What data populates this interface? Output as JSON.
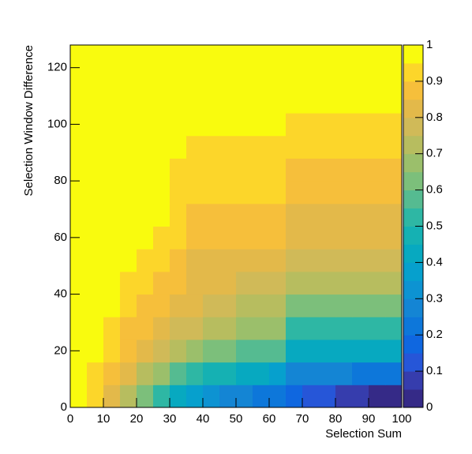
{
  "chart_data": {
    "type": "heatmap",
    "xlabel": "Selection Sum",
    "ylabel": "Selection Window Difference",
    "x_edges": [
      0,
      5,
      10,
      15,
      20,
      25,
      30,
      35,
      40,
      45,
      50,
      55,
      60,
      65,
      70,
      75,
      80,
      85,
      90,
      95,
      100
    ],
    "y_edges": [
      0,
      8,
      16,
      24,
      32,
      40,
      48,
      56,
      64,
      72,
      80,
      88,
      96,
      104,
      112,
      120,
      128
    ],
    "z": [
      [
        1,
        0.95,
        0.85,
        0.75,
        0.65,
        0.55,
        0.45,
        0.4,
        0.35,
        0.3,
        0.3,
        0.25,
        0.25,
        0.2,
        0.15,
        0.15,
        0.1,
        0.1,
        0.05,
        0.05
      ],
      [
        1,
        0.95,
        0.9,
        0.85,
        0.75,
        0.7,
        0.6,
        0.55,
        0.5,
        0.5,
        0.45,
        0.45,
        0.4,
        0.3,
        0.3,
        0.3,
        0.3,
        0.25,
        0.25,
        0.25
      ],
      [
        1,
        1,
        0.95,
        0.9,
        0.85,
        0.8,
        0.75,
        0.7,
        0.65,
        0.65,
        0.6,
        0.6,
        0.6,
        0.45,
        0.45,
        0.45,
        0.45,
        0.45,
        0.45,
        0.45
      ],
      [
        1,
        1,
        0.95,
        0.9,
        0.9,
        0.85,
        0.8,
        0.8,
        0.75,
        0.75,
        0.7,
        0.7,
        0.7,
        0.55,
        0.55,
        0.55,
        0.55,
        0.55,
        0.55,
        0.55
      ],
      [
        1,
        1,
        1,
        0.95,
        0.9,
        0.9,
        0.85,
        0.85,
        0.8,
        0.8,
        0.75,
        0.75,
        0.75,
        0.65,
        0.65,
        0.65,
        0.65,
        0.65,
        0.65,
        0.65
      ],
      [
        1,
        1,
        1,
        0.95,
        0.95,
        0.9,
        0.9,
        0.85,
        0.85,
        0.85,
        0.8,
        0.8,
        0.8,
        0.75,
        0.75,
        0.75,
        0.75,
        0.75,
        0.75,
        0.75
      ],
      [
        1,
        1,
        1,
        1,
        0.95,
        0.95,
        0.9,
        0.85,
        0.85,
        0.85,
        0.85,
        0.85,
        0.85,
        0.8,
        0.8,
        0.8,
        0.8,
        0.8,
        0.8,
        0.8
      ],
      [
        1,
        1,
        1,
        1,
        1,
        0.95,
        0.95,
        0.9,
        0.9,
        0.9,
        0.9,
        0.9,
        0.9,
        0.85,
        0.85,
        0.85,
        0.85,
        0.85,
        0.85,
        0.85
      ],
      [
        1,
        1,
        1,
        1,
        1,
        1,
        0.95,
        0.9,
        0.9,
        0.9,
        0.9,
        0.9,
        0.9,
        0.85,
        0.85,
        0.85,
        0.85,
        0.85,
        0.85,
        0.85
      ],
      [
        1,
        1,
        1,
        1,
        1,
        1,
        0.95,
        0.95,
        0.95,
        0.95,
        0.95,
        0.95,
        0.95,
        0.9,
        0.9,
        0.9,
        0.9,
        0.9,
        0.9,
        0.9
      ],
      [
        1,
        1,
        1,
        1,
        1,
        1,
        0.95,
        0.95,
        0.95,
        0.95,
        0.95,
        0.95,
        0.95,
        0.9,
        0.9,
        0.9,
        0.9,
        0.9,
        0.9,
        0.9
      ],
      [
        1,
        1,
        1,
        1,
        1,
        1,
        1,
        0.95,
        0.95,
        0.95,
        0.95,
        0.95,
        0.95,
        0.95,
        0.95,
        0.95,
        0.95,
        0.95,
        0.95,
        0.95
      ],
      [
        1,
        1,
        1,
        1,
        1,
        1,
        1,
        1,
        1,
        1,
        1,
        1,
        1,
        0.95,
        0.95,
        0.95,
        0.95,
        0.95,
        0.95,
        0.95
      ],
      [
        1,
        1,
        1,
        1,
        1,
        1,
        1,
        1,
        1,
        1,
        1,
        1,
        1,
        1,
        1,
        1,
        1,
        1,
        1,
        1
      ],
      [
        1,
        1,
        1,
        1,
        1,
        1,
        1,
        1,
        1,
        1,
        1,
        1,
        1,
        1,
        1,
        1,
        1,
        1,
        1,
        1
      ],
      [
        1,
        1,
        1,
        1,
        1,
        1,
        1,
        1,
        1,
        1,
        1,
        1,
        1,
        1,
        1,
        1,
        1,
        1,
        1,
        1
      ]
    ],
    "palette": [
      "#352a87",
      "#363dad",
      "#2656d8",
      "#0f67e0",
      "#0d77da",
      "#1485d4",
      "#0d93d2",
      "#06a0cd",
      "#07a9c0",
      "#15b1b3",
      "#2eb7a4",
      "#55bb91",
      "#7cbf7b",
      "#9bbf6b",
      "#b7bd5f",
      "#d0ba58",
      "#e3b94a",
      "#f6bf3b",
      "#fcd62a",
      "#f9fb0e"
    ],
    "xlim": [
      0,
      100
    ],
    "ylim": [
      0,
      128
    ],
    "zlim": [
      0,
      1
    ],
    "xticks": [
      0,
      10,
      20,
      30,
      40,
      50,
      60,
      70,
      80,
      90,
      100
    ],
    "yticks": [
      0,
      20,
      40,
      60,
      80,
      100,
      120
    ],
    "zticks": [
      0,
      0.1,
      0.2,
      0.3,
      0.4,
      0.5,
      0.6,
      0.7,
      0.8,
      0.9,
      1
    ]
  }
}
